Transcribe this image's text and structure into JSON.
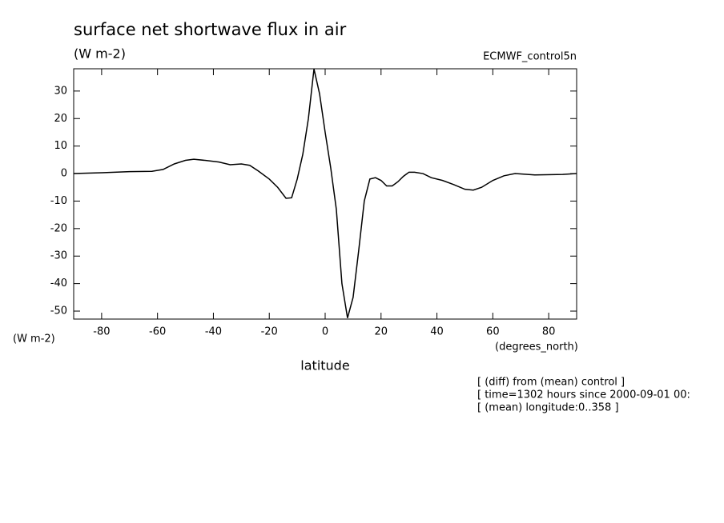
{
  "chart_data": {
    "type": "line",
    "title": "surface net shortwave flux in air",
    "units": "(W m-2)",
    "dataset": "ECMWF_control5n",
    "y_axis_units": "(W m-2)",
    "x_axis_units": "(degrees_north)",
    "xlabel": "latitude",
    "footnotes": [
      "[ (diff) from (mean) control ]",
      "[ time=1302 hours since 2000-09-01 00:",
      "[ (mean) longitude:0..358 ]"
    ],
    "x": [
      -90,
      -80,
      -70,
      -62,
      -58,
      -54,
      -50,
      -47,
      -43,
      -38,
      -34,
      -30,
      -27,
      -24,
      -20,
      -17,
      -14,
      -12,
      -10,
      -8,
      -6,
      -4,
      -2,
      0,
      2,
      4,
      6,
      8,
      10,
      12,
      14,
      16,
      18,
      20,
      22,
      24,
      26,
      28,
      30,
      32,
      35,
      38,
      42,
      46,
      50,
      53,
      56,
      60,
      64,
      68,
      75,
      85,
      90
    ],
    "series": [
      {
        "name": "ECMWF_control5n",
        "color": "#000000",
        "values": [
          0,
          0.3,
          0.7,
          0.8,
          1.5,
          3.5,
          4.8,
          5.2,
          4.8,
          4.2,
          3.2,
          3.5,
          3,
          1,
          -2,
          -5,
          -9,
          -8.8,
          -2,
          7,
          20,
          38,
          29,
          15,
          2,
          -13,
          -40,
          -52.5,
          -45,
          -28,
          -10,
          -2,
          -1.5,
          -2.5,
          -4.5,
          -4.5,
          -3,
          -1,
          0.5,
          0.5,
          0,
          -1.5,
          -2.5,
          -4,
          -5.7,
          -6,
          -5,
          -2.5,
          -0.8,
          0,
          -0.5,
          -0.3,
          0
        ]
      }
    ],
    "xlim": [
      -90,
      90
    ],
    "ylim": [
      -52.9,
      38.1
    ],
    "xticks": [
      -80,
      -60,
      -40,
      -20,
      0,
      20,
      40,
      60,
      80
    ],
    "yticks": [
      -50,
      -40,
      -30,
      -20,
      -10,
      0,
      10,
      20,
      30
    ]
  }
}
